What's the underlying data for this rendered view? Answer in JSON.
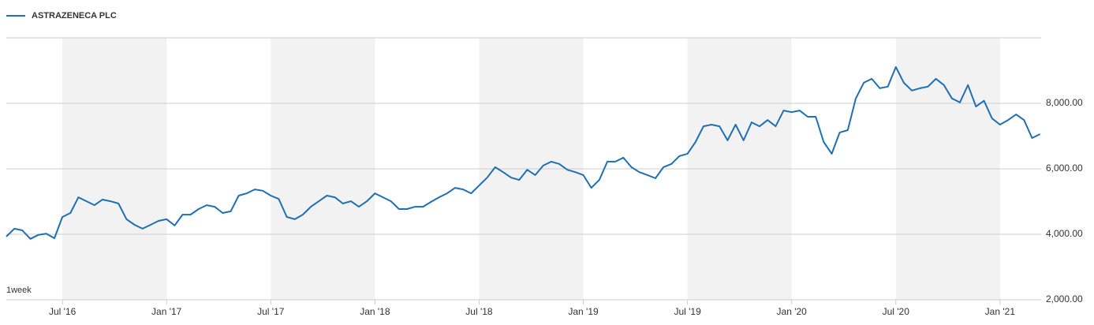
{
  "chart_data": {
    "type": "line",
    "series": [
      {
        "name": "ASTRAZENECA PLC",
        "color": "#1f6fb4",
        "values": [
          3930,
          4170,
          4120,
          3860,
          3980,
          4020,
          3880,
          4530,
          4650,
          5130,
          5010,
          4890,
          5060,
          5010,
          4940,
          4460,
          4290,
          4170,
          4290,
          4410,
          4460,
          4270,
          4600,
          4600,
          4770,
          4890,
          4840,
          4650,
          4700,
          5180,
          5250,
          5370,
          5330,
          5180,
          5080,
          4530,
          4460,
          4600,
          4840,
          5010,
          5180,
          5130,
          4940,
          5010,
          4840,
          5010,
          5250,
          5130,
          5010,
          4770,
          4770,
          4840,
          4840,
          4990,
          5130,
          5250,
          5420,
          5370,
          5250,
          5490,
          5730,
          6050,
          5900,
          5730,
          5660,
          5970,
          5810,
          6100,
          6220,
          6150,
          5970,
          5900,
          5810,
          5420,
          5660,
          6220,
          6220,
          6340,
          6050,
          5900,
          5810,
          5710,
          6050,
          6150,
          6390,
          6460,
          6820,
          7300,
          7350,
          7300,
          6870,
          7350,
          6870,
          7420,
          7300,
          7490,
          7300,
          7780,
          7730,
          7780,
          7590,
          7590,
          6820,
          6460,
          7110,
          7180,
          8150,
          8630,
          8750,
          8460,
          8510,
          9110,
          8630,
          8390,
          8460,
          8510,
          8750,
          8560,
          8150,
          8030,
          8560,
          7900,
          8080,
          7540,
          7350,
          7490,
          7660,
          7490,
          6940,
          7060
        ]
      }
    ],
    "categories": [
      null,
      null,
      null,
      null,
      null,
      null,
      null,
      "Jul '16",
      null,
      null,
      null,
      null,
      null,
      null,
      null,
      null,
      null,
      null,
      null,
      null,
      "Jan '17",
      null,
      null,
      null,
      null,
      null,
      null,
      null,
      null,
      null,
      null,
      null,
      null,
      "Jul '17",
      null,
      null,
      null,
      null,
      null,
      null,
      null,
      null,
      null,
      null,
      null,
      null,
      "Jan '18",
      null,
      null,
      null,
      null,
      null,
      null,
      null,
      null,
      null,
      null,
      null,
      null,
      "Jul '18",
      null,
      null,
      null,
      null,
      null,
      null,
      null,
      null,
      null,
      null,
      null,
      null,
      "Jan '19",
      null,
      null,
      null,
      null,
      null,
      null,
      null,
      null,
      null,
      null,
      null,
      null,
      "Jul '19",
      null,
      null,
      null,
      null,
      null,
      null,
      null,
      null,
      null,
      null,
      null,
      null,
      "Jan '20",
      null,
      null,
      null,
      null,
      null,
      null,
      null,
      null,
      null,
      null,
      null,
      null,
      "Jul '20",
      null,
      null,
      null,
      null,
      null,
      null,
      null,
      null,
      null,
      null,
      null,
      null,
      "Jan '21",
      null,
      null,
      null,
      null,
      null
    ],
    "ylim": [
      2000,
      10000
    ],
    "yticks": [
      {
        "value": 2000,
        "label": "2,000.00"
      },
      {
        "value": 4000,
        "label": "4,000.00"
      },
      {
        "value": 6000,
        "label": "6,000.00"
      },
      {
        "value": 8000,
        "label": "8,000.00"
      }
    ],
    "grid": true,
    "annotation": "1week"
  }
}
